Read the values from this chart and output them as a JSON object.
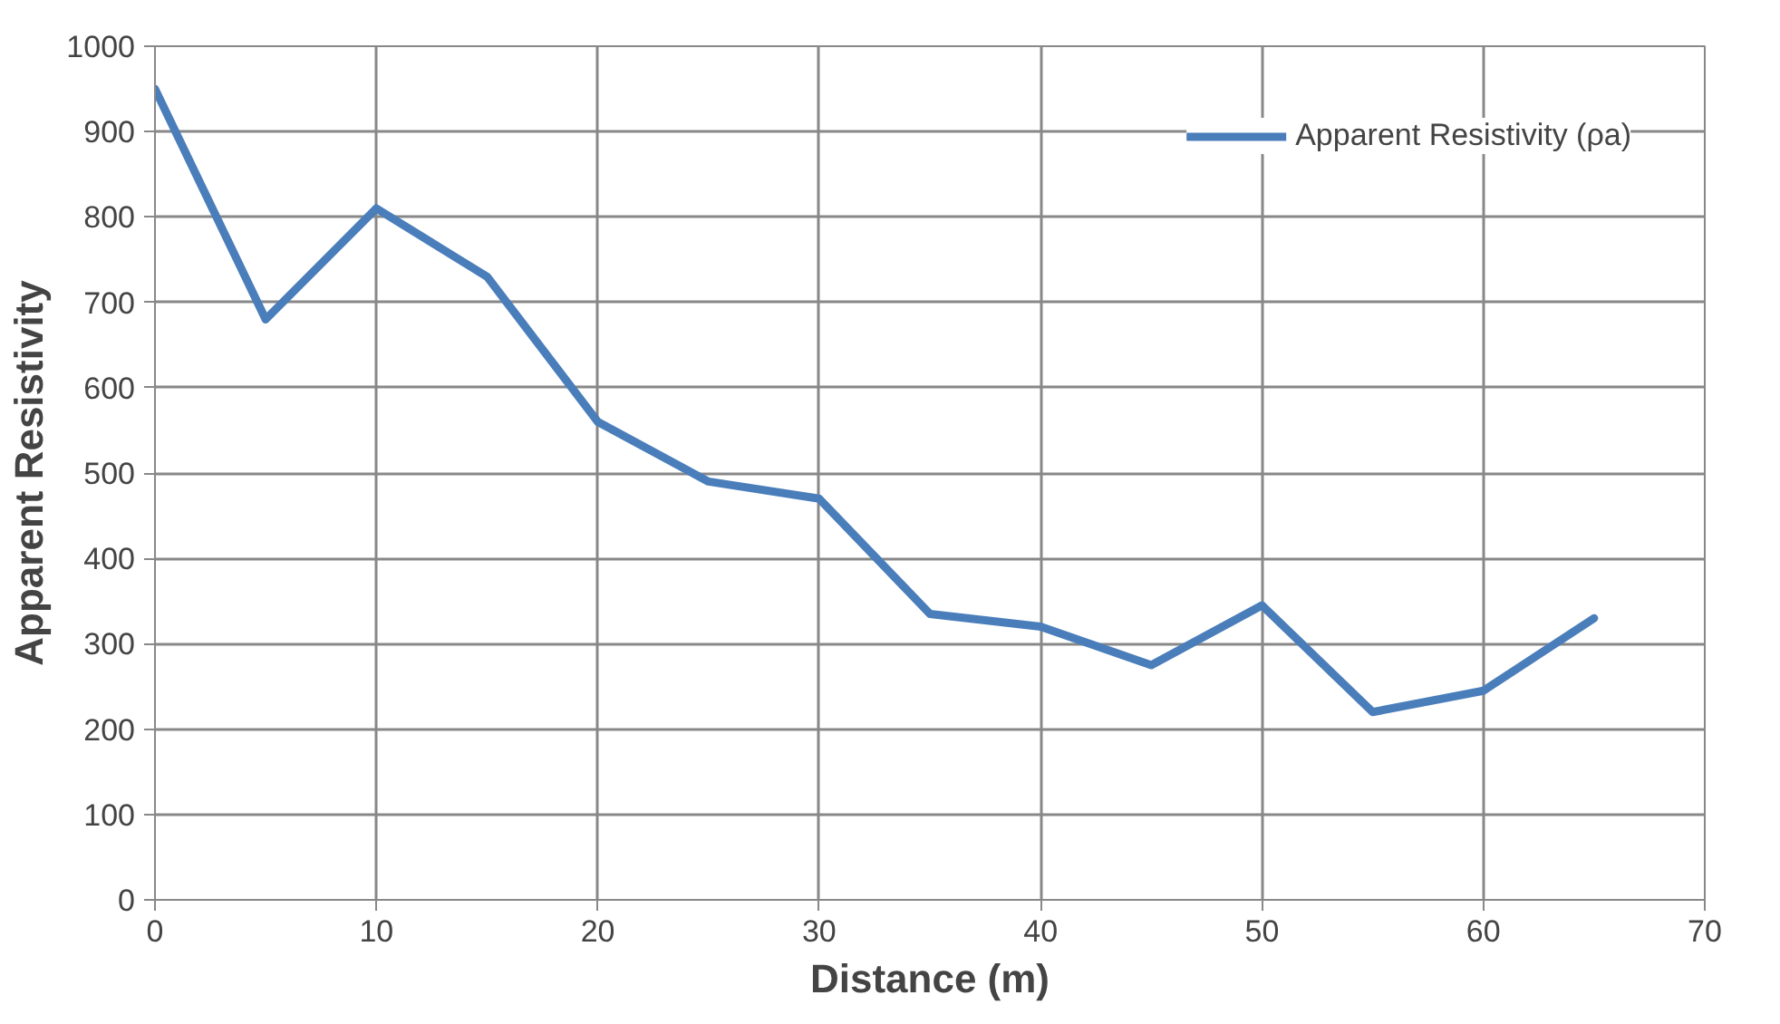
{
  "chart_data": {
    "type": "line",
    "xlabel": "Distance (m)",
    "ylabel": "Apparent Resistivity",
    "x": [
      0,
      5,
      10,
      15,
      20,
      25,
      30,
      35,
      40,
      45,
      50,
      55,
      60,
      65
    ],
    "series": [
      {
        "name": "Apparent Resistivity (ρa)",
        "color": "#4a7ebb",
        "values": [
          950,
          680,
          810,
          730,
          560,
          490,
          470,
          335,
          320,
          275,
          345,
          220,
          245,
          330
        ]
      }
    ],
    "xlim": [
      0,
      70
    ],
    "xticks": [
      0,
      10,
      20,
      30,
      40,
      50,
      60,
      70
    ],
    "ylim": [
      0,
      1000
    ],
    "yticks": [
      0,
      100,
      200,
      300,
      400,
      500,
      600,
      700,
      800,
      900,
      1000
    ],
    "grid": true,
    "legend": "top right",
    "marker": "none",
    "line_style": "solid"
  }
}
